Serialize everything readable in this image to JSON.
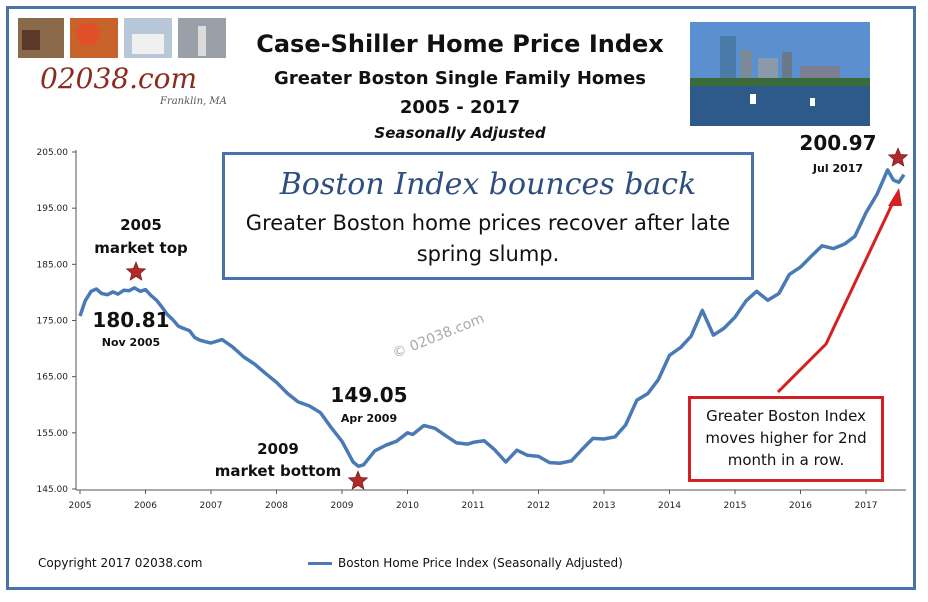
{
  "brand": {
    "logo": "02038.com",
    "location": "Franklin, MA"
  },
  "header": {
    "title": "Case-Shiller Home Price Index",
    "subtitle": "Greater Boston Single Family Homes",
    "years": "2005 - 2017",
    "note": "Seasonally Adjusted"
  },
  "callout": {
    "headline": "Boston Index bounces back",
    "body": "Greater Boston home prices recover after late spring slump."
  },
  "red_callout": "Greater Boston Index moves higher for 2nd month in a row.",
  "watermark": "© 02038.com",
  "footer": {
    "copyright": "Copyright 2017 02038.com"
  },
  "colors": {
    "line": "#4a7ab5",
    "frame": "#4a73a8",
    "star": "#b02a2a",
    "arrow": "#d42020"
  },
  "annotations": [
    {
      "id": "top-label",
      "line1": "2005",
      "line2": "market top"
    },
    {
      "id": "bottom-label",
      "line1": "2009",
      "line2": "market bottom"
    },
    {
      "id": "peak",
      "value": "180.81",
      "date": "Nov 2005"
    },
    {
      "id": "trough",
      "value": "149.05",
      "date": "Apr 2009"
    },
    {
      "id": "latest",
      "value": "200.97",
      "date": "Jul 2017"
    }
  ],
  "chart_data": {
    "type": "line",
    "ylim": [
      145,
      205
    ],
    "xlim": [
      2005,
      2017.58
    ],
    "yticks": [
      "145.00",
      "155.00",
      "165.00",
      "175.00",
      "185.00",
      "195.00",
      "205.00"
    ],
    "xticks": [
      "2005",
      "2006",
      "2007",
      "2008",
      "2009",
      "2010",
      "2011",
      "2012",
      "2013",
      "2014",
      "2015",
      "2016",
      "2017"
    ],
    "series": [
      {
        "name": "Boston Home Price Index (Seasonally Adjusted)",
        "x": [
          2005.0,
          2005.08,
          2005.17,
          2005.25,
          2005.33,
          2005.42,
          2005.5,
          2005.58,
          2005.67,
          2005.75,
          2005.83,
          2005.92,
          2006.0,
          2006.08,
          2006.17,
          2006.25,
          2006.33,
          2006.42,
          2006.5,
          2006.58,
          2006.67,
          2006.75,
          2006.83,
          2006.92,
          2007.0,
          2007.17,
          2007.33,
          2007.5,
          2007.67,
          2007.83,
          2008.0,
          2008.17,
          2008.33,
          2008.5,
          2008.67,
          2008.83,
          2009.0,
          2009.17,
          2009.25,
          2009.33,
          2009.5,
          2009.67,
          2009.83,
          2010.0,
          2010.08,
          2010.25,
          2010.42,
          2010.58,
          2010.75,
          2010.92,
          2011.0,
          2011.17,
          2011.33,
          2011.5,
          2011.67,
          2011.83,
          2012.0,
          2012.17,
          2012.33,
          2012.5,
          2012.67,
          2012.83,
          2013.0,
          2013.17,
          2013.33,
          2013.5,
          2013.67,
          2013.83,
          2014.0,
          2014.17,
          2014.33,
          2014.5,
          2014.67,
          2014.83,
          2015.0,
          2015.17,
          2015.33,
          2015.5,
          2015.67,
          2015.83,
          2016.0,
          2016.17,
          2016.33,
          2016.5,
          2016.67,
          2016.83,
          2017.0,
          2017.17,
          2017.33,
          2017.42,
          2017.5,
          2017.58
        ],
        "values": [
          175.8,
          178.5,
          180.2,
          180.6,
          179.8,
          179.6,
          180.1,
          179.7,
          180.4,
          180.3,
          180.81,
          180.2,
          180.5,
          179.5,
          178.6,
          177.4,
          176.1,
          175.1,
          174.0,
          173.6,
          173.2,
          172.0,
          171.5,
          171.2,
          171.0,
          171.6,
          170.3,
          168.5,
          167.2,
          165.6,
          164.0,
          162.0,
          160.5,
          159.8,
          158.6,
          156.0,
          153.5,
          149.8,
          149.05,
          149.3,
          151.8,
          152.8,
          153.5,
          155.0,
          154.7,
          156.3,
          155.8,
          154.5,
          153.2,
          153.0,
          153.3,
          153.6,
          152.0,
          149.8,
          151.9,
          151.0,
          150.8,
          149.7,
          149.6,
          150.0,
          152.1,
          154.0,
          153.9,
          154.3,
          156.4,
          160.8,
          162.0,
          164.5,
          168.8,
          170.2,
          172.2,
          176.8,
          172.4,
          173.6,
          175.6,
          178.5,
          180.2,
          178.6,
          179.8,
          183.2,
          184.5,
          186.5,
          188.3,
          187.8,
          188.6,
          190.0,
          194.2,
          197.5,
          201.8,
          200.0,
          199.6,
          200.97
        ]
      }
    ],
    "legend": "bottom-center",
    "grid": false
  }
}
